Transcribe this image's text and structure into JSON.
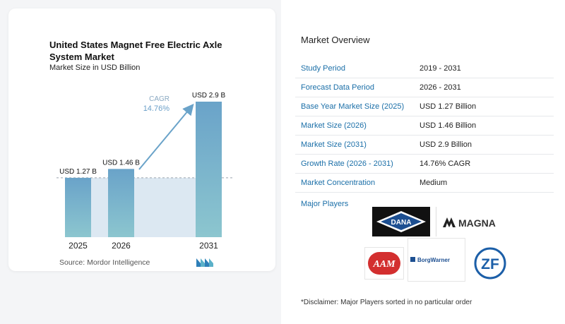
{
  "chart_data": {
    "type": "bar",
    "title": "United States Magnet Free Electric Axle System Market",
    "subtitle": "Market Size in USD Billion",
    "categories": [
      "2025",
      "2026",
      "2031"
    ],
    "values": [
      1.27,
      1.46,
      2.9
    ],
    "data_labels": [
      "USD 1.27 B",
      "USD 1.46 B",
      "USD 2.9 B"
    ],
    "cagr_label": "CAGR",
    "cagr_value": "14.76%",
    "ylim": [
      0,
      2.9
    ],
    "grid": false,
    "colors": {
      "bar_top": "#6aa3c9",
      "bar_bottom": "#8cc6cf",
      "area": "#dce8f2",
      "arrow": "#6aa3c9",
      "cagr_text": "#6a9fc8"
    }
  },
  "source": "Source: Mordor Intelligence",
  "overview": {
    "title": "Market Overview",
    "rows": [
      {
        "key": "Study Period",
        "value": "2019 - 2031"
      },
      {
        "key": "Forecast Data Period",
        "value": "2026 - 2031"
      },
      {
        "key": "Base Year Market Size (2025)",
        "value": "USD 1.27 Billion"
      },
      {
        "key": "Market Size (2026)",
        "value": "USD 1.46 Billion"
      },
      {
        "key": "Market Size (2031)",
        "value": "USD 2.9 Billion"
      },
      {
        "key": "Growth Rate (2026 - 2031)",
        "value": "14.76% CAGR"
      },
      {
        "key": "Market Concentration",
        "value": "Medium"
      }
    ],
    "players_label": "Major Players",
    "players": [
      "DANA",
      "MAGNA",
      "AAM",
      "BorgWarner",
      "ZF"
    ],
    "disclaimer": "*Disclaimer: Major Players sorted in no particular order"
  }
}
